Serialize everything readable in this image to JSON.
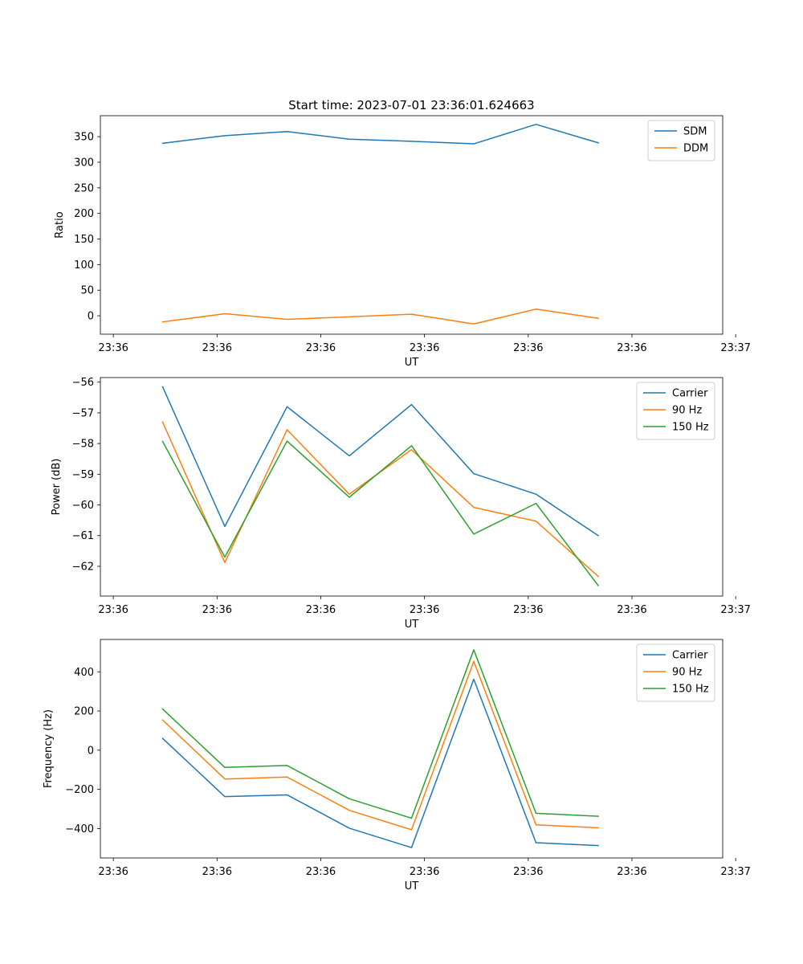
{
  "figure": {
    "title": "Start time: 2023-07-01 23:36:01.624663"
  },
  "chart_data": [
    {
      "type": "line",
      "xlabel": "UT",
      "ylabel": "Ratio",
      "x": [
        0.6,
        1.2,
        1.8,
        2.4,
        3.0,
        3.6,
        4.2,
        4.8
      ],
      "xlim": [
        0,
        6
      ],
      "xtick_values": [
        0.125,
        1.125,
        2.125,
        3.125,
        4.125,
        5.125,
        6.125
      ],
      "xtick_labels": [
        "23:36",
        "23:36",
        "23:36",
        "23:36",
        "23:36",
        "23:36",
        "23:37"
      ],
      "ylim": [
        -36,
        391
      ],
      "yticks": [
        0,
        50,
        100,
        150,
        200,
        250,
        300,
        350
      ],
      "legend": "top-right",
      "series": [
        {
          "name": "SDM",
          "color": "#1f77b4",
          "values": [
            337,
            352,
            360,
            345,
            341,
            336,
            374,
            338
          ]
        },
        {
          "name": "DDM",
          "color": "#ff7f0e",
          "values": [
            -12,
            4,
            -7,
            -2,
            3,
            -16,
            13,
            -5
          ]
        }
      ]
    },
    {
      "type": "line",
      "xlabel": "UT",
      "ylabel": "Power (dB)",
      "x": [
        0.6,
        1.2,
        1.8,
        2.4,
        3.0,
        3.6,
        4.2,
        4.8
      ],
      "xlim": [
        0,
        6
      ],
      "xtick_values": [
        0.125,
        1.125,
        2.125,
        3.125,
        4.125,
        5.125,
        6.125
      ],
      "xtick_labels": [
        "23:36",
        "23:36",
        "23:36",
        "23:36",
        "23:36",
        "23:36",
        "23:37"
      ],
      "ylim": [
        -62.97,
        -55.85
      ],
      "yticks": [
        -62,
        -61,
        -60,
        -59,
        -58,
        -57,
        -56
      ],
      "legend": "top-right",
      "series": [
        {
          "name": "Carrier",
          "color": "#1f77b4",
          "values": [
            -56.15,
            -60.7,
            -56.8,
            -58.4,
            -56.73,
            -58.98,
            -59.65,
            -61.0
          ]
        },
        {
          "name": "90 Hz",
          "color": "#ff7f0e",
          "values": [
            -57.3,
            -61.88,
            -57.55,
            -59.65,
            -58.2,
            -60.08,
            -60.53,
            -62.33
          ]
        },
        {
          "name": "150 Hz",
          "color": "#2ca02c",
          "values": [
            -57.93,
            -61.7,
            -57.92,
            -59.75,
            -58.07,
            -60.95,
            -59.95,
            -62.63
          ]
        }
      ]
    },
    {
      "type": "line",
      "xlabel": "UT",
      "ylabel": "Frequency (Hz)",
      "x": [
        0.6,
        1.2,
        1.8,
        2.4,
        3.0,
        3.6,
        4.2,
        4.8
      ],
      "xlim": [
        0,
        6
      ],
      "xtick_values": [
        0.125,
        1.125,
        2.125,
        3.125,
        4.125,
        5.125,
        6.125
      ],
      "xtick_labels": [
        "23:36",
        "23:36",
        "23:36",
        "23:36",
        "23:36",
        "23:36",
        "23:37"
      ],
      "ylim": [
        -550,
        565
      ],
      "yticks": [
        -400,
        -200,
        0,
        200,
        400
      ],
      "legend": "top-right",
      "series": [
        {
          "name": "Carrier",
          "color": "#1f77b4",
          "values": [
            60,
            -237,
            -228,
            -398,
            -497,
            362,
            -472,
            -487
          ]
        },
        {
          "name": "90 Hz",
          "color": "#ff7f0e",
          "values": [
            154,
            -147,
            -137,
            -307,
            -406,
            453,
            -381,
            -396
          ]
        },
        {
          "name": "150 Hz",
          "color": "#2ca02c",
          "values": [
            210,
            -88,
            -78,
            -248,
            -347,
            512,
            -322,
            -337
          ]
        }
      ]
    }
  ]
}
